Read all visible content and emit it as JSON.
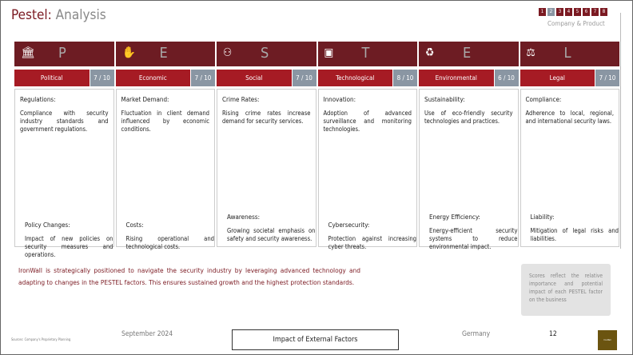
{
  "header": {
    "title": "Pestel:",
    "title_sub": "Analysis",
    "pages": [
      "1",
      "2",
      "3",
      "4",
      "5",
      "6",
      "7",
      "8"
    ],
    "active_page": "2",
    "section": "Company & Product"
  },
  "factors": [
    {
      "letter": "P",
      "icon": "bank-icon",
      "glyph": "🏛",
      "label": "Political",
      "score": "7 / 10",
      "items": [
        {
          "heading": "Regulations:",
          "text": "Compliance with security industry standards and government regulations."
        },
        {
          "heading": "Policy Changes:",
          "text": "Impact of new policies on security measures and operations."
        }
      ]
    },
    {
      "letter": "E",
      "icon": "hand-money-icon",
      "glyph": "✋",
      "label": "Economic",
      "score": "7 / 10",
      "items": [
        {
          "heading": "Market Demand:",
          "text": "Fluctuation in client demand influenced by economic conditions."
        },
        {
          "heading": "Costs:",
          "text": "Rising operational and technological costs."
        }
      ]
    },
    {
      "letter": "S",
      "icon": "people-network-icon",
      "glyph": "⚇",
      "label": "Social",
      "score": "7 / 10",
      "items": [
        {
          "heading": "Crime Rates:",
          "text": "Rising crime rates increase demand for security services."
        },
        {
          "heading": "Awareness:",
          "text": "Growing societal emphasis on safety and security awareness."
        }
      ]
    },
    {
      "letter": "T",
      "icon": "chip-icon",
      "glyph": "▣",
      "label": "Technological",
      "score": "8 / 10",
      "items": [
        {
          "heading": "Innovation:",
          "text": "Adoption of advanced surveillance and monitoring technologies."
        },
        {
          "heading": "Cybersecurity:",
          "text": "Protection against increasing cyber threats."
        }
      ]
    },
    {
      "letter": "E",
      "icon": "recycle-leaf-icon",
      "glyph": "♻",
      "label": "Environmental",
      "score": "6 / 10",
      "items": [
        {
          "heading": "Sustainability:",
          "text": "Use of eco-friendly security technologies and practices."
        },
        {
          "heading": "Energy Efficiency:",
          "text": "Energy-efficient security systems to reduce environmental impact."
        }
      ]
    },
    {
      "letter": "L",
      "icon": "gavel-icon",
      "glyph": "⚖",
      "label": "Legal",
      "score": "7 / 10",
      "items": [
        {
          "heading": "Compliance:",
          "text": "Adherence to local, regional, and international security laws."
        },
        {
          "heading": "Liability:",
          "text": "Mitigation of legal risks and liabilities."
        }
      ]
    }
  ],
  "summary": "IronWall is strategically positioned to navigate the security industry by leveraging advanced technology and adapting to changes in the PESTEL factors. This ensures sustained growth and the highest protection standards.",
  "note": "Scores reflect the relative importance and potential impact of each PESTEL factor on the business",
  "footer": {
    "source": "Sources: Company's Proprietary Planning",
    "date": "September 2024",
    "title": "Impact of External Factors",
    "country": "Germany",
    "page": "12",
    "logo": "IronWall"
  },
  "colors": {
    "primary": "#6d1c23",
    "accent": "#a61b24",
    "score": "#8a96a3"
  }
}
